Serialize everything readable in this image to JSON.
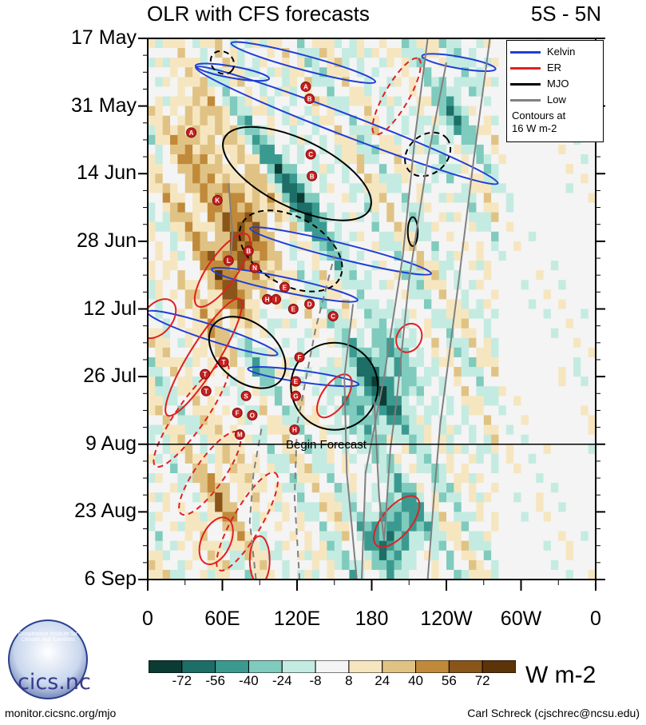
{
  "title": "OLR with CFS forecasts",
  "region": "5S - 5N",
  "chart_data": {
    "type": "heatmap",
    "title": "OLR with CFS forecasts",
    "subtitle": "5S - 5N",
    "xlabel": "",
    "ylabel": "",
    "x_ticks": [
      "0",
      "60E",
      "120E",
      "180",
      "120W",
      "60W",
      "0"
    ],
    "x_tick_lon": [
      0,
      60,
      120,
      180,
      240,
      300,
      360
    ],
    "y_ticks": [
      "17 May",
      "31 May",
      "14 Jun",
      "28 Jun",
      "12 Jul",
      "26 Jul",
      "9 Aug",
      "23 Aug",
      "6 Sep"
    ],
    "y_tick_day": [
      0,
      14,
      28,
      42,
      56,
      70,
      84,
      98,
      112
    ],
    "xlim": [
      0,
      360
    ],
    "ylim_days": [
      0,
      112
    ],
    "forecast_start_day": 84,
    "forecast_label": "Begin Forecast",
    "colorbar": {
      "levels": [
        "-72",
        "-56",
        "-40",
        "-24",
        "-8",
        "8",
        "24",
        "40",
        "56",
        "72"
      ],
      "colors": [
        "#0c3b33",
        "#1c6e66",
        "#3b9a90",
        "#7fcbbd",
        "#c4ebe1",
        "#f4f4f4",
        "#f6e6c0",
        "#e0c384",
        "#c08a3a",
        "#8a5518",
        "#5c3408"
      ],
      "units": "W m-2"
    },
    "legend": {
      "entries": [
        {
          "label": "Kelvin",
          "color": "#1f3fd6"
        },
        {
          "label": "ER",
          "color": "#e02020"
        },
        {
          "label": "MJO",
          "color": "#000000"
        },
        {
          "label": "Low",
          "color": "#808080"
        }
      ],
      "note_line1": "Contours at",
      "note_line2": "16 W m-2",
      "placement": "top-right"
    },
    "storms": [
      {
        "label": "A",
        "lon": 127,
        "day": 10
      },
      {
        "label": "B",
        "lon": 130,
        "day": 12.5
      },
      {
        "label": "A",
        "lon": 35,
        "day": 19.5
      },
      {
        "label": "C",
        "lon": 131,
        "day": 24
      },
      {
        "label": "B",
        "lon": 132,
        "day": 28.5
      },
      {
        "label": "K",
        "lon": 56,
        "day": 33.5
      },
      {
        "label": "B",
        "lon": 81,
        "day": 44
      },
      {
        "label": "L",
        "lon": 65,
        "day": 46
      },
      {
        "label": "N",
        "lon": 86,
        "day": 47.5
      },
      {
        "label": "E",
        "lon": 110,
        "day": 51.5
      },
      {
        "label": "H",
        "lon": 96,
        "day": 54
      },
      {
        "label": "I",
        "lon": 103,
        "day": 54
      },
      {
        "label": "D",
        "lon": 130,
        "day": 55
      },
      {
        "label": "E",
        "lon": 117,
        "day": 56
      },
      {
        "label": "C",
        "lon": 149,
        "day": 57.5
      },
      {
        "label": "F",
        "lon": 122,
        "day": 66
      },
      {
        "label": "T",
        "lon": 61,
        "day": 67
      },
      {
        "label": "T",
        "lon": 46,
        "day": 69.5
      },
      {
        "label": "E",
        "lon": 119,
        "day": 71
      },
      {
        "label": "T",
        "lon": 47,
        "day": 73
      },
      {
        "label": "S",
        "lon": 79,
        "day": 74
      },
      {
        "label": "G",
        "lon": 119,
        "day": 74
      },
      {
        "label": "F",
        "lon": 72,
        "day": 77.5
      },
      {
        "label": "O",
        "lon": 84,
        "day": 78
      },
      {
        "label": "M",
        "lon": 74,
        "day": 82
      },
      {
        "label": "H",
        "lon": 118,
        "day": 81
      }
    ]
  },
  "footer": {
    "left": "monitor.cicsnc.org/mjo",
    "right": "Carl Schreck (cjschrec@ncsu.edu)",
    "logo_text": "cics.nc",
    "logo_ring": "Cooperative Institute for Climate and Satellites"
  }
}
